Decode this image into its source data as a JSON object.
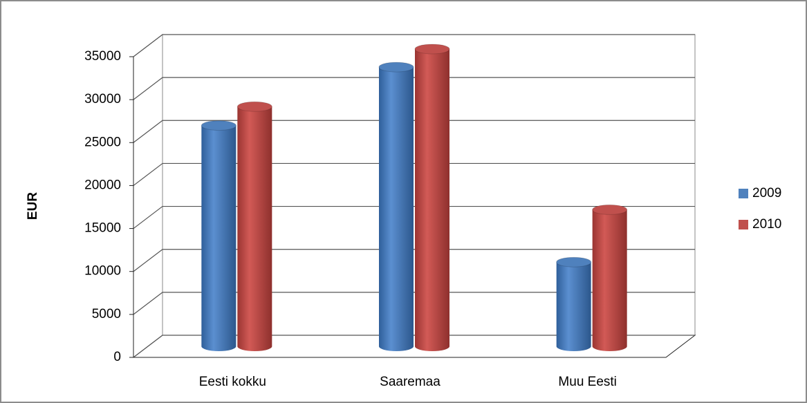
{
  "chart_data": {
    "type": "bar3d",
    "y_label": "EUR",
    "categories": [
      "Eesti kokku",
      "Saaremaa",
      "Muu Eesti"
    ],
    "series": [
      {
        "name": "2009",
        "color": "#4f81bd",
        "values": [
          25700,
          32500,
          9800
        ]
      },
      {
        "name": "2010",
        "color": "#c0504d",
        "values": [
          27900,
          34600,
          15900
        ]
      }
    ],
    "ylim": [
      0,
      35000
    ],
    "yticks": [
      0,
      5000,
      10000,
      15000,
      20000,
      25000,
      30000,
      35000
    ],
    "grid": true,
    "legend": "right"
  }
}
